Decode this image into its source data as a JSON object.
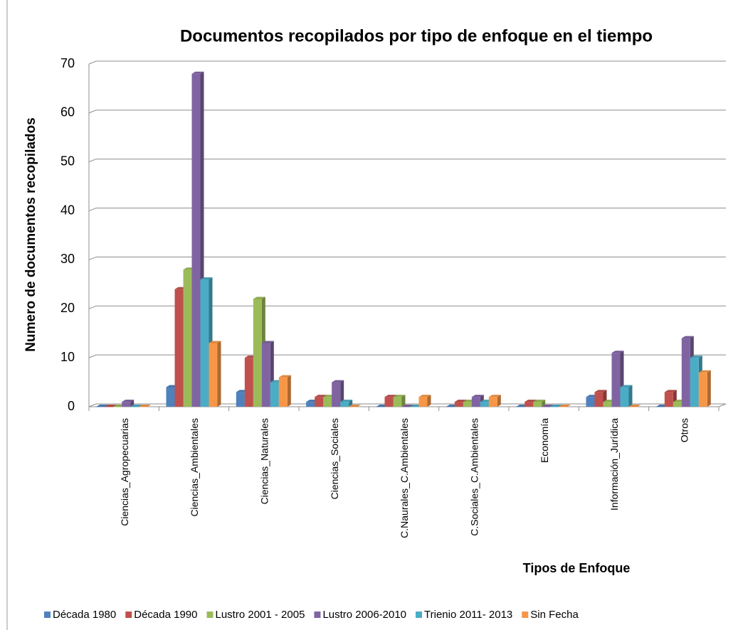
{
  "chart_data": {
    "type": "bar",
    "title": "Documentos recopilados por tipo de enfoque en el tiempo",
    "x_label": "Tipos de Enfoque",
    "y_label": "Numero de documentos recopilados",
    "categories": [
      "Ciencias_Agropecuarias",
      "Ciencias_Ambientales",
      "Ciencias_Naturales",
      "Ciencias_Sociales",
      "C.Naurales_C.Ambientales",
      "C.Sociales_C.Ambientales",
      "Economía",
      "Información_Jurídica",
      "Otros"
    ],
    "series": [
      {
        "name": "Década 1980",
        "color": "#4f81bd",
        "values": [
          0,
          4,
          3,
          1,
          0,
          0,
          0,
          2,
          0
        ]
      },
      {
        "name": "Década 1990",
        "color": "#c0504d",
        "values": [
          0,
          24,
          10,
          2,
          2,
          1,
          1,
          3,
          3
        ]
      },
      {
        "name": "Lustro 2001 - 2005",
        "color": "#9bbb59",
        "values": [
          0,
          28,
          22,
          2,
          2,
          1,
          1,
          1,
          1
        ]
      },
      {
        "name": "Lustro 2006-2010",
        "color": "#8064a2",
        "values": [
          1,
          68,
          13,
          5,
          0,
          2,
          0,
          11,
          14
        ]
      },
      {
        "name": "Trienio 2011- 2013",
        "color": "#4bacc6",
        "values": [
          0,
          26,
          5,
          1,
          0,
          1,
          0,
          4,
          10
        ]
      },
      {
        "name": "Sin Fecha",
        "color": "#f79646",
        "values": [
          0,
          13,
          6,
          0,
          2,
          2,
          0,
          0,
          7
        ]
      }
    ],
    "ylim": [
      0,
      70
    ],
    "yticks": [
      0,
      10,
      20,
      30,
      40,
      50,
      60,
      70
    ],
    "grid": true,
    "legend": "bottom"
  }
}
